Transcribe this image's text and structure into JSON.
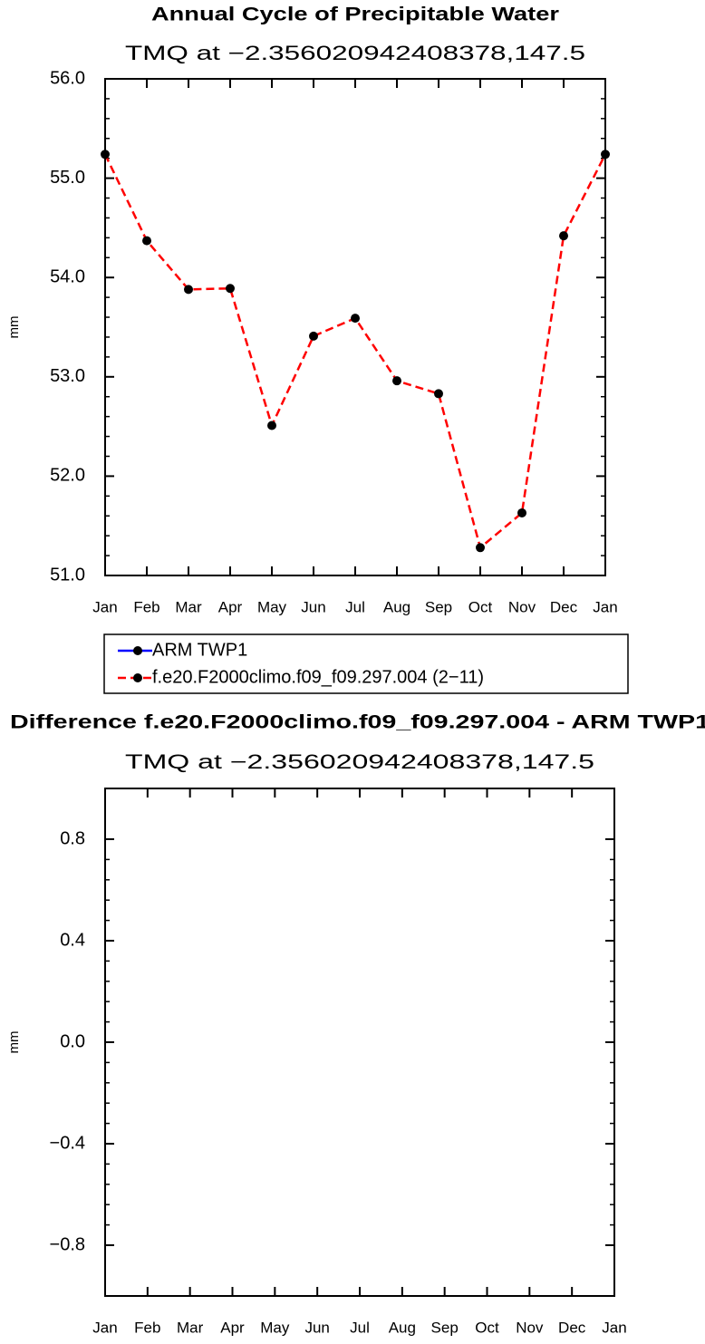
{
  "chart_data": [
    {
      "type": "line",
      "title": "Annual Cycle of Precipitable Water",
      "subtitle": "TMQ at −2.356020942408378,147.5",
      "ylabel": "mm",
      "categories": [
        "Jan",
        "Feb",
        "Mar",
        "Apr",
        "May",
        "Jun",
        "Jul",
        "Aug",
        "Sep",
        "Oct",
        "Nov",
        "Dec",
        "Jan"
      ],
      "series": [
        {
          "name": "ARM  TWP1",
          "color": "#0000ff",
          "values": [
            null,
            null,
            null,
            null,
            null,
            null,
            null,
            null,
            null,
            null,
            null,
            null,
            null
          ]
        },
        {
          "name": "f.e20.F2000climo.f09_f09.297.004 (2−11)",
          "color": "#ff0000",
          "values": [
            55.24,
            54.37,
            53.88,
            53.89,
            52.51,
            53.41,
            53.59,
            52.96,
            52.83,
            51.28,
            51.63,
            54.42,
            55.24
          ]
        }
      ],
      "ylim": [
        51.0,
        56.0
      ],
      "yticks": [
        {
          "value": 51,
          "label": "51.0"
        },
        {
          "value": 52,
          "label": "52.0"
        },
        {
          "value": 53,
          "label": "53.0"
        },
        {
          "value": 54,
          "label": "54.0"
        },
        {
          "value": 55,
          "label": "55.0"
        },
        {
          "value": 56,
          "label": "56.0"
        }
      ]
    },
    {
      "type": "line",
      "title": "Difference f.e20.F2000climo.f09_f09.297.004 - ARM TWP1",
      "subtitle": "TMQ at −2.356020942408378,147.5",
      "ylabel": "mm",
      "categories": [
        "Jan",
        "Feb",
        "Mar",
        "Apr",
        "May",
        "Jun",
        "Jul",
        "Aug",
        "Sep",
        "Oct",
        "Nov",
        "Dec",
        "Jan"
      ],
      "ylim": [
        -1,
        1
      ],
      "yticks": [
        {
          "value": -0.8,
          "label": "−0.8"
        },
        {
          "value": -0.4,
          "label": "−0.4"
        },
        {
          "value": 0,
          "label": "0.0"
        },
        0.4,
        0.8
      ]
    }
  ]
}
